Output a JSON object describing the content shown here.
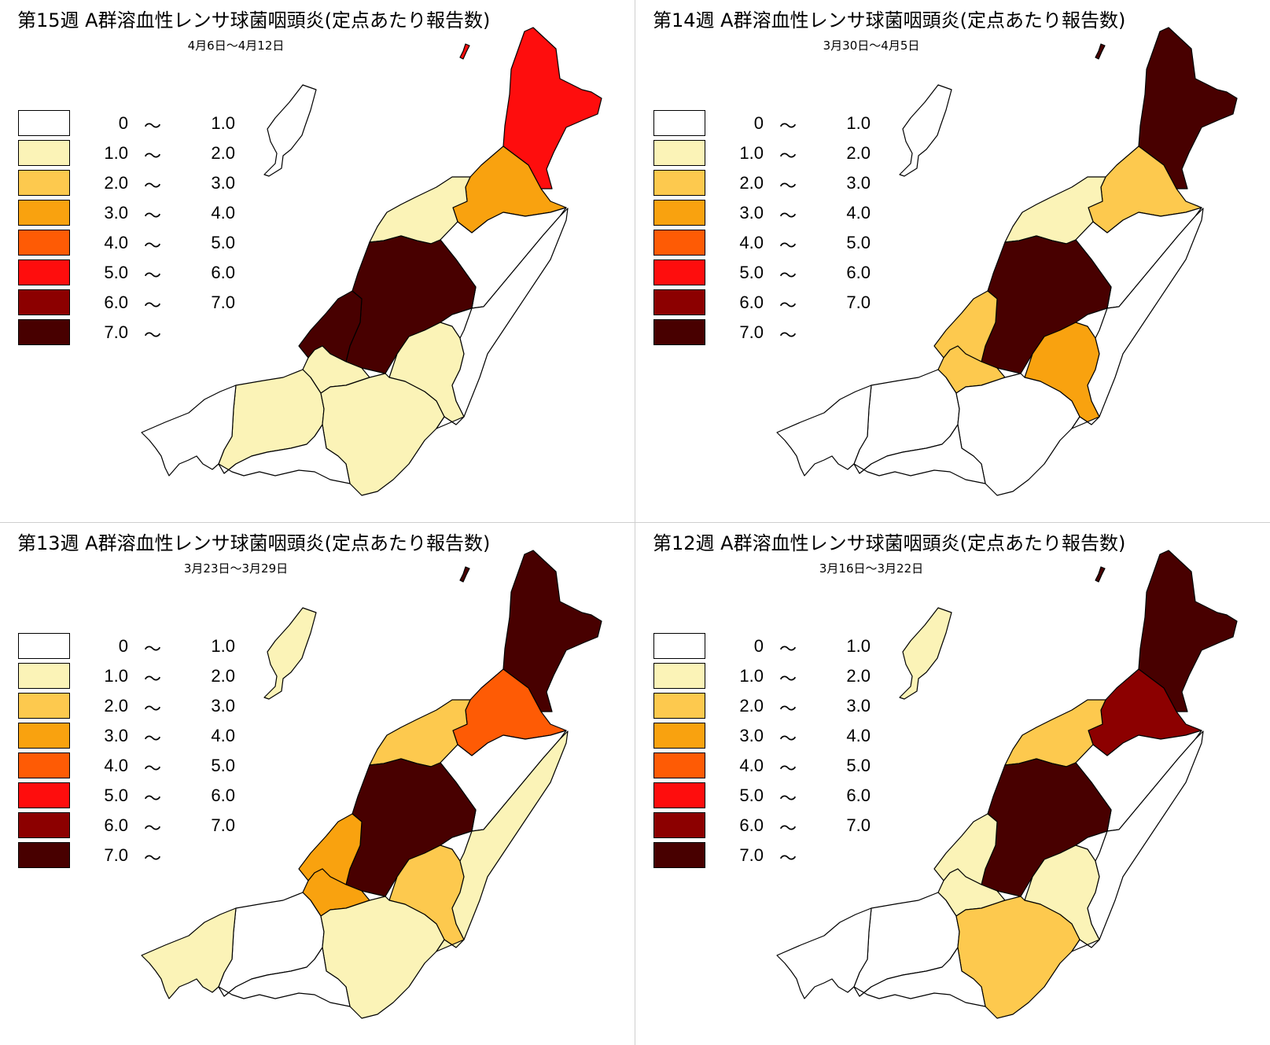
{
  "colors": {
    "bin0": "#ffffff",
    "bin1": "#fbf3b7",
    "bin2": "#fdc94e",
    "bin3": "#f9a20f",
    "bin4": "#fe5b05",
    "bin5": "#fe0d0d",
    "bin6": "#8c0000",
    "bin7": "#480000"
  },
  "legend": [
    {
      "lo": "0",
      "tilde": "〜",
      "hi": "1.0",
      "color": "#ffffff"
    },
    {
      "lo": "1.0",
      "tilde": "〜",
      "hi": "2.0",
      "color": "#fbf3b7"
    },
    {
      "lo": "2.0",
      "tilde": "〜",
      "hi": "3.0",
      "color": "#fdc94e"
    },
    {
      "lo": "3.0",
      "tilde": "〜",
      "hi": "4.0",
      "color": "#f9a20f"
    },
    {
      "lo": "4.0",
      "tilde": "〜",
      "hi": "5.0",
      "color": "#fe5b05"
    },
    {
      "lo": "5.0",
      "tilde": "〜",
      "hi": "6.0",
      "color": "#fe0d0d"
    },
    {
      "lo": "6.0",
      "tilde": "〜",
      "hi": "7.0",
      "color": "#8c0000"
    },
    {
      "lo": "7.0",
      "tilde": "〜",
      "hi": "",
      "color": "#480000"
    }
  ],
  "panels": [
    {
      "title": "第15週 A群溶血性レンサ球菌咽頭炎(定点あたり報告数)",
      "dates": "4月6日〜4月12日",
      "regions": {
        "awaji": "#fe0d0d",
        "murakami": "#fe0d0d",
        "shibata": "#f9a20f",
        "niigata": "#fbf3b7",
        "center": "#480000",
        "sanjo": "#480000",
        "nagaoka": "#fbf3b7",
        "uonuma": "#fbf3b7",
        "kashiwazaki": "#fbf3b7",
        "joetsu": "#fbf3b7",
        "itoigawa": "#ffffff",
        "minamiuonuma": "#ffffff",
        "tokamachi": "#ffffff",
        "agano": "#ffffff",
        "sado": "#ffffff"
      }
    },
    {
      "title": "第14週 A群溶血性レンサ球菌咽頭炎(定点あたり報告数)",
      "dates": "3月30日〜4月5日",
      "regions": {
        "awaji": "#480000",
        "murakami": "#480000",
        "shibata": "#fdc94e",
        "niigata": "#fbf3b7",
        "center": "#480000",
        "sanjo": "#fdc94e",
        "nagaoka": "#fdc94e",
        "uonuma": "#f9a20f",
        "kashiwazaki": "#ffffff",
        "joetsu": "#ffffff",
        "itoigawa": "#ffffff",
        "minamiuonuma": "#ffffff",
        "tokamachi": "#ffffff",
        "agano": "#ffffff",
        "sado": "#ffffff"
      }
    },
    {
      "title": "第13週 A群溶血性レンサ球菌咽頭炎(定点あたり報告数)",
      "dates": "3月23日〜3月29日",
      "regions": {
        "awaji": "#480000",
        "murakami": "#480000",
        "shibata": "#fe5b05",
        "niigata": "#fdc94e",
        "center": "#480000",
        "sanjo": "#f9a20f",
        "nagaoka": "#f9a20f",
        "uonuma": "#fdc94e",
        "kashiwazaki": "#ffffff",
        "joetsu": "#fbf3b7",
        "itoigawa": "#fbf3b7",
        "minamiuonuma": "#fbf3b7",
        "tokamachi": "#ffffff",
        "agano": "#ffffff",
        "sado": "#fbf3b7"
      }
    },
    {
      "title": "第12週 A群溶血性レンサ球菌咽頭炎(定点あたり報告数)",
      "dates": "3月16日〜3月22日",
      "regions": {
        "awaji": "#480000",
        "murakami": "#480000",
        "shibata": "#8c0000",
        "niigata": "#fdc94e",
        "center": "#480000",
        "sanjo": "#fbf3b7",
        "nagaoka": "#fbf3b7",
        "uonuma": "#fbf3b7",
        "kashiwazaki": "#ffffff",
        "joetsu": "#fdc94e",
        "itoigawa": "#ffffff",
        "minamiuonuma": "#ffffff",
        "tokamachi": "#ffffff",
        "agano": "#ffffff",
        "sado": "#fbf3b7"
      }
    }
  ]
}
